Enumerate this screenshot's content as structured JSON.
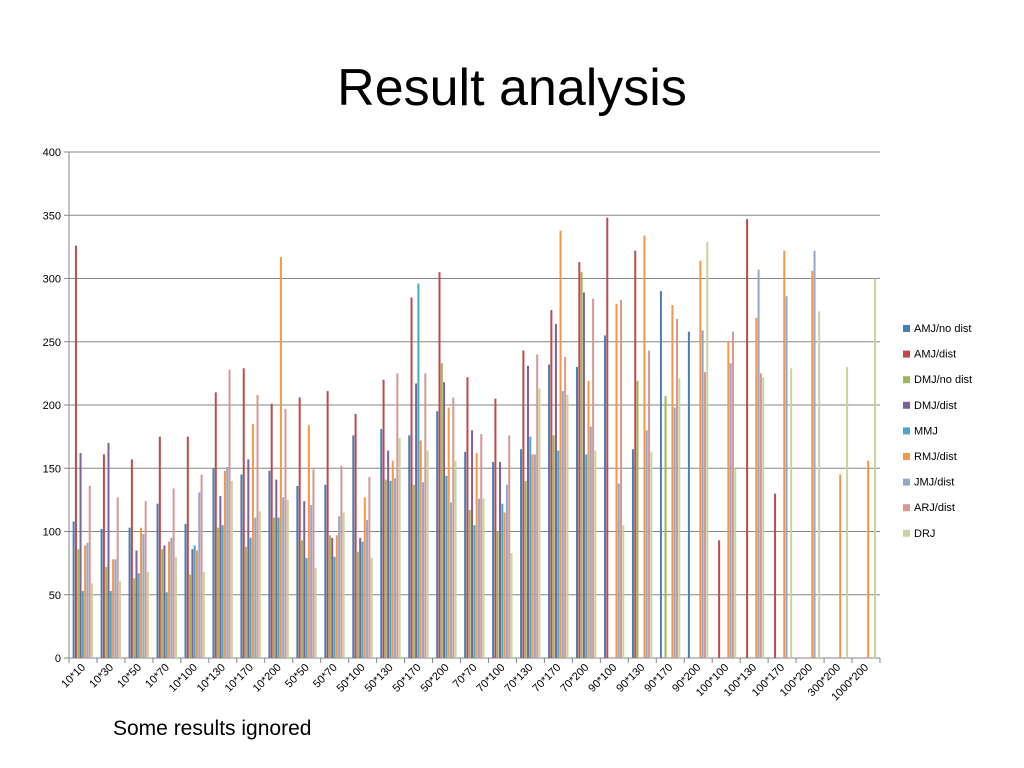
{
  "slide": {
    "title": "Result analysis",
    "note": "Some results ignored"
  },
  "chart_data": {
    "type": "bar",
    "title": "",
    "xlabel": "",
    "ylabel": "",
    "ylim": [
      0,
      400
    ],
    "yticks": [
      0,
      50,
      100,
      150,
      200,
      250,
      300,
      350,
      400
    ],
    "grid": true,
    "legend_position": "right",
    "categories": [
      "10*10",
      "10*30",
      "10*50",
      "10*70",
      "10*100",
      "10*130",
      "10*170",
      "10*200",
      "50*50",
      "50*70",
      "50*100",
      "50*130",
      "50*170",
      "50*200",
      "70*70",
      "70*100",
      "70*130",
      "70*170",
      "70*200",
      "90*100",
      "90*130",
      "90*170",
      "90*200",
      "100*100",
      "100*130",
      "100*170",
      "100*200",
      "300*200",
      "1000*200"
    ],
    "series": [
      {
        "name": "AMJ/no dist",
        "color": "#4a7ebb",
        "values": [
          108,
          102,
          103,
          122,
          106,
          150,
          145,
          148,
          136,
          137,
          176,
          181,
          176,
          195,
          163,
          155,
          165,
          232,
          230,
          255,
          165,
          290,
          258,
          null,
          null,
          null,
          null,
          null,
          null
        ]
      },
      {
        "name": "AMJ/dist",
        "color": "#be4b48",
        "values": [
          326,
          161,
          157,
          175,
          175,
          210,
          229,
          201,
          206,
          211,
          193,
          220,
          285,
          305,
          222,
          205,
          243,
          275,
          313,
          348,
          322,
          null,
          null,
          93,
          347,
          130,
          null,
          null,
          null
        ]
      },
      {
        "name": "DMJ/no dist",
        "color": "#98b954",
        "values": [
          86,
          72,
          63,
          86,
          66,
          103,
          88,
          111,
          93,
          97,
          84,
          141,
          137,
          233,
          117,
          100,
          140,
          176,
          305,
          null,
          219,
          207,
          null,
          null,
          null,
          null,
          null,
          null,
          null
        ]
      },
      {
        "name": "DMJ/dist",
        "color": "#7d60a0",
        "values": [
          162,
          170,
          85,
          89,
          86,
          128,
          157,
          141,
          124,
          95,
          95,
          164,
          217,
          218,
          180,
          155,
          231,
          264,
          289,
          null,
          null,
          null,
          null,
          null,
          null,
          null,
          null,
          null,
          null
        ]
      },
      {
        "name": "MMJ",
        "color": "#46aac5",
        "values": [
          53,
          53,
          67,
          52,
          89,
          105,
          95,
          111,
          79,
          80,
          92,
          140,
          296,
          144,
          105,
          122,
          175,
          164,
          161,
          null,
          null,
          null,
          null,
          null,
          null,
          null,
          null,
          null,
          null
        ]
      },
      {
        "name": "RMJ/dist",
        "color": "#f79646",
        "values": [
          89,
          78,
          103,
          92,
          85,
          148,
          185,
          317,
          184,
          97,
          127,
          156,
          172,
          198,
          162,
          115,
          161,
          338,
          219,
          280,
          334,
          279,
          314,
          250,
          269,
          322,
          306,
          145,
          156
        ]
      },
      {
        "name": "JMJ/dist",
        "color": "#92a9cf",
        "values": [
          91,
          78,
          98,
          95,
          131,
          151,
          111,
          127,
          121,
          112,
          109,
          142,
          139,
          123,
          126,
          137,
          161,
          211,
          183,
          138,
          180,
          198,
          259,
          233,
          307,
          286,
          322,
          null,
          null
        ]
      },
      {
        "name": "ARJ/dist",
        "color": "#d99694",
        "values": [
          136,
          127,
          124,
          134,
          145,
          228,
          208,
          197,
          149,
          152,
          143,
          225,
          225,
          206,
          177,
          176,
          240,
          238,
          284,
          283,
          243,
          268,
          226,
          258,
          225,
          null,
          null,
          null,
          null
        ]
      },
      {
        "name": "DRJ",
        "color": "#c3d69b",
        "values": [
          59,
          61,
          68,
          80,
          68,
          140,
          116,
          125,
          71,
          115,
          79,
          174,
          164,
          156,
          126,
          83,
          213,
          208,
          164,
          105,
          163,
          221,
          329,
          150,
          222,
          229,
          274,
          230,
          300
        ]
      }
    ]
  }
}
